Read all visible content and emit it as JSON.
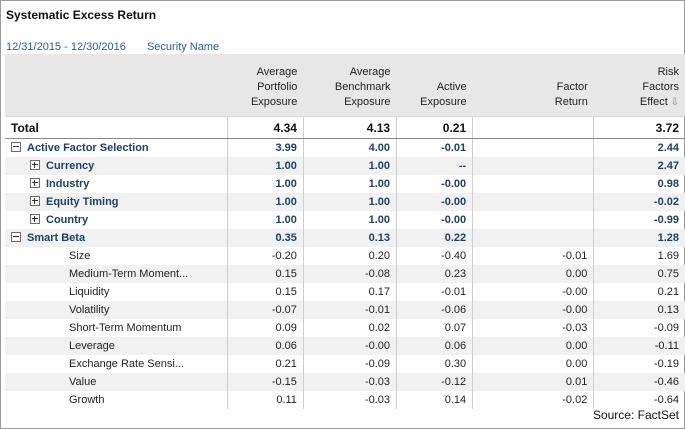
{
  "title": "Systematic Excess Return",
  "date_range": "12/31/2015 - 12/30/2016",
  "security_label": "Security Name",
  "columns": [
    "",
    "Average\nPortfolio\nExposure",
    "Average\nBenchmark\nExposure",
    "Active\nExposure",
    "Factor\nReturn",
    "Risk\nFactors\nEffect"
  ],
  "total": {
    "label": "Total",
    "values": [
      "4.34",
      "4.13",
      "0.21",
      "",
      "3.72"
    ]
  },
  "rows": [
    {
      "label": "Active Factor Selection",
      "level": "group",
      "toggle": "minus",
      "values": [
        "3.99",
        "4.00",
        "-0.01",
        "",
        "2.44"
      ]
    },
    {
      "label": "Currency",
      "level": "sub",
      "toggle": "plus",
      "values": [
        "1.00",
        "1.00",
        "--",
        "",
        "2.47"
      ]
    },
    {
      "label": "Industry",
      "level": "sub",
      "toggle": "plus",
      "values": [
        "1.00",
        "1.00",
        "-0.00",
        "",
        "0.98"
      ]
    },
    {
      "label": "Equity Timing",
      "level": "sub",
      "toggle": "plus",
      "values": [
        "1.00",
        "1.00",
        "-0.00",
        "",
        "-0.02"
      ]
    },
    {
      "label": "Country",
      "level": "sub",
      "toggle": "plus",
      "values": [
        "1.00",
        "1.00",
        "-0.00",
        "",
        "-0.99"
      ]
    },
    {
      "label": "Smart Beta",
      "level": "group",
      "toggle": "minus",
      "values": [
        "0.35",
        "0.13",
        "0.22",
        "",
        "1.28"
      ]
    },
    {
      "label": "Size",
      "level": "leaf",
      "values": [
        "-0.20",
        "0.20",
        "-0.40",
        "-0.01",
        "1.69"
      ]
    },
    {
      "label": "Medium-Term Moment...",
      "level": "leaf",
      "values": [
        "0.15",
        "-0.08",
        "0.23",
        "0.00",
        "0.75"
      ]
    },
    {
      "label": "Liquidity",
      "level": "leaf",
      "values": [
        "0.15",
        "0.17",
        "-0.01",
        "-0.00",
        "0.21"
      ]
    },
    {
      "label": "Volatility",
      "level": "leaf",
      "values": [
        "-0.07",
        "-0.01",
        "-0.06",
        "-0.00",
        "0.13"
      ]
    },
    {
      "label": "Short-Term Momentum",
      "level": "leaf",
      "values": [
        "0.09",
        "0.02",
        "0.07",
        "-0.03",
        "-0.09"
      ]
    },
    {
      "label": "Leverage",
      "level": "leaf",
      "values": [
        "0.06",
        "-0.00",
        "0.06",
        "0.00",
        "-0.11"
      ]
    },
    {
      "label": "Exchange Rate Sensi...",
      "level": "leaf",
      "values": [
        "0.21",
        "-0.09",
        "0.30",
        "0.00",
        "-0.19"
      ]
    },
    {
      "label": "Value",
      "level": "leaf",
      "values": [
        "-0.15",
        "-0.03",
        "-0.12",
        "0.01",
        "-0.46"
      ]
    },
    {
      "label": "Growth",
      "level": "leaf",
      "values": [
        "0.11",
        "-0.03",
        "0.14",
        "-0.02",
        "-0.64"
      ]
    }
  ],
  "sort_icon": "sort-descending-icon",
  "source": "Source: FactSet",
  "colors": {
    "header_bg": "#e7e7e7",
    "zebra": "#f1f1f1",
    "link": "#2f5b8c",
    "group_text": "#1f3f66"
  }
}
